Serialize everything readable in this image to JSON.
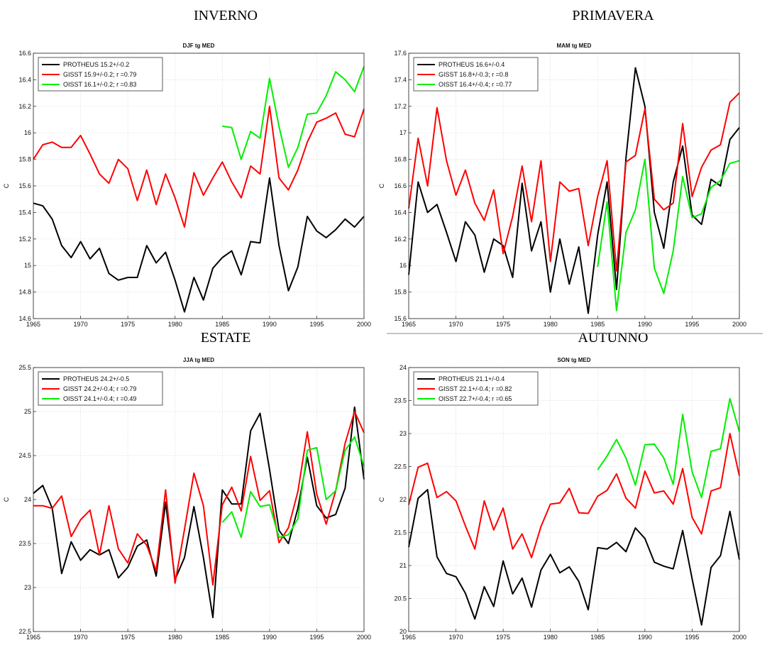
{
  "season_labels": [
    "INVERNO",
    "PRIMAVERA",
    "ESTATE",
    "AUTUNNO"
  ],
  "colors": {
    "PROTHEUS": "#000000",
    "GISST": "#ff0000",
    "OISST": "#00ee00"
  },
  "chart_data": [
    {
      "type": "line",
      "title": "DJF tg MED",
      "ylabel": "C",
      "xlim": [
        1965,
        2000
      ],
      "ylim": [
        14.6,
        16.6
      ],
      "xticks": [
        "1965",
        "1970",
        "1975",
        "1980",
        "1985",
        "1990",
        "1995",
        "2000"
      ],
      "yticks": [
        "14.6",
        "14.8",
        "15",
        "15.2",
        "15.4",
        "15.6",
        "15.8",
        "16",
        "16.2",
        "16.4",
        "16.6"
      ],
      "grid": true,
      "legend": "top-left",
      "series": [
        {
          "name": "PROTHEUS 15.2+/-0.2",
          "color": "#000000",
          "x": [
            1965,
            1966,
            1967,
            1968,
            1969,
            1970,
            1971,
            1972,
            1973,
            1974,
            1975,
            1976,
            1977,
            1978,
            1979,
            1980,
            1981,
            1982,
            1983,
            1984,
            1985,
            1986,
            1987,
            1988,
            1989,
            1990,
            1991,
            1992,
            1993,
            1994,
            1995,
            1996,
            1997,
            1998,
            1999,
            2000
          ],
          "values": [
            15.47,
            15.45,
            15.35,
            15.15,
            15.06,
            15.18,
            15.05,
            15.13,
            14.94,
            14.89,
            14.91,
            14.91,
            15.15,
            15.02,
            15.1,
            14.89,
            14.65,
            14.91,
            14.74,
            14.98,
            15.06,
            15.11,
            14.93,
            15.18,
            15.17,
            15.66,
            15.15,
            14.81,
            14.99,
            15.37,
            15.26,
            15.21,
            15.27,
            15.35,
            15.29,
            15.37
          ]
        },
        {
          "name": "GISST 15.9+/-0.2; r =0.79",
          "color": "#ff0000",
          "x": [
            1965,
            1966,
            1967,
            1968,
            1969,
            1970,
            1971,
            1972,
            1973,
            1974,
            1975,
            1976,
            1977,
            1978,
            1979,
            1980,
            1981,
            1982,
            1983,
            1984,
            1985,
            1986,
            1987,
            1988,
            1989,
            1990,
            1991,
            1992,
            1993,
            1994,
            1995,
            1996,
            1997,
            1998,
            1999,
            2000
          ],
          "values": [
            15.8,
            15.91,
            15.93,
            15.89,
            15.89,
            15.98,
            15.84,
            15.69,
            15.62,
            15.8,
            15.73,
            15.49,
            15.72,
            15.46,
            15.69,
            15.51,
            15.29,
            15.7,
            15.53,
            15.66,
            15.78,
            15.63,
            15.51,
            15.75,
            15.69,
            16.2,
            15.66,
            15.57,
            15.72,
            15.93,
            16.08,
            16.11,
            16.15,
            15.99,
            15.97,
            16.18
          ]
        },
        {
          "name": "OISST 16.1+/-0.2; r =0.83",
          "color": "#00ee00",
          "x": [
            1985,
            1986,
            1987,
            1988,
            1989,
            1990,
            1991,
            1992,
            1993,
            1994,
            1995,
            1996,
            1997,
            1998,
            1999,
            2000
          ],
          "values": [
            16.05,
            16.04,
            15.8,
            16.01,
            15.96,
            16.41,
            16.05,
            15.74,
            15.89,
            16.14,
            16.15,
            16.28,
            16.46,
            16.4,
            16.31,
            16.5
          ]
        }
      ]
    },
    {
      "type": "line",
      "title": "MAM tg MED",
      "ylabel": "C",
      "xlim": [
        1965,
        2000
      ],
      "ylim": [
        15.6,
        17.6
      ],
      "xticks": [
        "1965",
        "1970",
        "1975",
        "1980",
        "1985",
        "1990",
        "1995",
        "2000"
      ],
      "yticks": [
        "15.6",
        "15.8",
        "16",
        "16.2",
        "16.4",
        "16.6",
        "16.8",
        "17",
        "17.2",
        "17.4",
        "17.6"
      ],
      "grid": true,
      "legend": "top-left",
      "series": [
        {
          "name": "PROTHEUS 16.6+/-0.4",
          "color": "#000000",
          "x": [
            1965,
            1966,
            1967,
            1968,
            1969,
            1970,
            1971,
            1972,
            1973,
            1974,
            1975,
            1976,
            1977,
            1978,
            1979,
            1980,
            1981,
            1982,
            1983,
            1984,
            1985,
            1986,
            1987,
            1988,
            1989,
            1990,
            1991,
            1992,
            1993,
            1994,
            1995,
            1996,
            1997,
            1998,
            1999,
            2000
          ],
          "values": [
            15.93,
            16.63,
            16.4,
            16.46,
            16.25,
            16.03,
            16.33,
            16.23,
            15.95,
            16.2,
            16.15,
            15.91,
            16.62,
            16.11,
            16.33,
            15.8,
            16.2,
            15.86,
            16.14,
            15.64,
            16.23,
            16.63,
            15.82,
            16.81,
            17.49,
            17.2,
            16.4,
            16.13,
            16.63,
            16.9,
            16.38,
            16.31,
            16.65,
            16.6,
            16.95,
            17.04
          ]
        },
        {
          "name": "GISST 16.8+/-0.3; r =0.8",
          "color": "#ff0000",
          "x": [
            1965,
            1966,
            1967,
            1968,
            1969,
            1970,
            1971,
            1972,
            1973,
            1974,
            1975,
            1976,
            1977,
            1978,
            1979,
            1980,
            1981,
            1982,
            1983,
            1984,
            1985,
            1986,
            1987,
            1988,
            1989,
            1990,
            1991,
            1992,
            1993,
            1994,
            1995,
            1996,
            1997,
            1998,
            1999,
            2000
          ],
          "values": [
            16.43,
            16.96,
            16.6,
            17.19,
            16.79,
            16.53,
            16.72,
            16.47,
            16.34,
            16.57,
            16.09,
            16.37,
            16.75,
            16.33,
            16.79,
            16.03,
            16.63,
            16.56,
            16.58,
            16.15,
            16.52,
            16.79,
            15.96,
            16.78,
            16.83,
            17.18,
            16.5,
            16.42,
            16.47,
            17.07,
            16.52,
            16.74,
            16.87,
            16.91,
            17.23,
            17.3
          ]
        },
        {
          "name": "OISST 16.4+/-0.4; r =0.77",
          "color": "#00ee00",
          "x": [
            1985,
            1986,
            1987,
            1988,
            1989,
            1990,
            1991,
            1992,
            1993,
            1994,
            1995,
            1996,
            1997,
            1998,
            1999,
            2000
          ],
          "values": [
            15.99,
            16.48,
            15.66,
            16.25,
            16.42,
            16.8,
            15.98,
            15.79,
            16.11,
            16.67,
            16.36,
            16.39,
            16.59,
            16.64,
            16.77,
            16.79
          ]
        }
      ]
    },
    {
      "type": "line",
      "title": "JJA tg MED",
      "ylabel": "C",
      "xlim": [
        1965,
        2000
      ],
      "ylim": [
        22.5,
        25.5
      ],
      "xticks": [
        "1965",
        "1970",
        "1975",
        "1980",
        "1985",
        "1990",
        "1995",
        "2000"
      ],
      "yticks": [
        "22.5",
        "23",
        "23.5",
        "24",
        "24.5",
        "25",
        "25.5"
      ],
      "grid": true,
      "legend": "top-left",
      "series": [
        {
          "name": "PROTHEUS 24.2+/-0.5",
          "color": "#000000",
          "x": [
            1965,
            1966,
            1967,
            1968,
            1969,
            1970,
            1971,
            1972,
            1973,
            1974,
            1975,
            1976,
            1977,
            1978,
            1979,
            1980,
            1981,
            1982,
            1983,
            1984,
            1985,
            1986,
            1987,
            1988,
            1989,
            1990,
            1991,
            1992,
            1993,
            1994,
            1995,
            1996,
            1997,
            1998,
            1999,
            2000
          ],
          "values": [
            24.07,
            24.16,
            23.9,
            23.16,
            23.52,
            23.31,
            23.43,
            23.37,
            23.43,
            23.11,
            23.23,
            23.47,
            23.54,
            23.13,
            23.97,
            23.09,
            23.34,
            23.92,
            23.34,
            22.66,
            24.11,
            23.95,
            23.95,
            24.78,
            24.98,
            24.34,
            23.65,
            23.5,
            23.9,
            24.48,
            23.93,
            23.79,
            23.83,
            24.13,
            25.05,
            24.23
          ]
        },
        {
          "name": "GISST 24.2+/-0.4; r =0.79",
          "color": "#ff0000",
          "x": [
            1965,
            1966,
            1967,
            1968,
            1969,
            1970,
            1971,
            1972,
            1973,
            1974,
            1975,
            1976,
            1977,
            1978,
            1979,
            1980,
            1981,
            1982,
            1983,
            1984,
            1985,
            1986,
            1987,
            1988,
            1989,
            1990,
            1991,
            1992,
            1993,
            1994,
            1995,
            1996,
            1997,
            1998,
            1999,
            2000
          ],
          "values": [
            23.93,
            23.93,
            23.9,
            24.04,
            23.58,
            23.77,
            23.88,
            23.37,
            23.93,
            23.44,
            23.28,
            23.61,
            23.48,
            23.19,
            24.11,
            23.05,
            23.66,
            24.3,
            23.93,
            23.03,
            23.94,
            24.14,
            23.87,
            24.49,
            23.99,
            24.1,
            23.51,
            23.68,
            24.09,
            24.77,
            24.06,
            23.72,
            24.1,
            24.64,
            25.0,
            24.76
          ]
        },
        {
          "name": "OISST 24.1+/-0.4; r =0.49",
          "color": "#00ee00",
          "x": [
            1985,
            1986,
            1987,
            1988,
            1989,
            1990,
            1991,
            1992,
            1993,
            1994,
            1995,
            1996,
            1997,
            1998,
            1999,
            2000
          ],
          "values": [
            23.74,
            23.86,
            23.57,
            24.09,
            23.92,
            23.94,
            23.57,
            23.6,
            23.78,
            24.56,
            24.59,
            24.0,
            24.1,
            24.56,
            24.71,
            24.38
          ]
        }
      ]
    },
    {
      "type": "line",
      "title": "SON tg MED",
      "ylabel": "C",
      "xlim": [
        1965,
        2000
      ],
      "ylim": [
        20,
        24
      ],
      "xticks": [
        "1965",
        "1970",
        "1975",
        "1980",
        "1985",
        "1990",
        "1995",
        "2000"
      ],
      "yticks": [
        "20",
        "20.5",
        "21",
        "21.5",
        "22",
        "22.5",
        "23",
        "23.5",
        "24"
      ],
      "grid": true,
      "legend": "top-left",
      "series": [
        {
          "name": "PROTHEUS 21.1+/-0.4",
          "color": "#000000",
          "x": [
            1965,
            1966,
            1967,
            1968,
            1969,
            1970,
            1971,
            1972,
            1973,
            1974,
            1975,
            1976,
            1977,
            1978,
            1979,
            1980,
            1981,
            1982,
            1983,
            1984,
            1985,
            1986,
            1987,
            1988,
            1989,
            1990,
            1991,
            1992,
            1993,
            1994,
            1995,
            1996,
            1997,
            1998,
            1999,
            2000
          ],
          "values": [
            21.28,
            22.02,
            22.15,
            21.13,
            20.88,
            20.83,
            20.58,
            20.19,
            20.68,
            20.38,
            21.07,
            20.57,
            20.81,
            20.37,
            20.93,
            21.17,
            20.89,
            20.98,
            20.76,
            20.33,
            21.27,
            21.25,
            21.35,
            21.21,
            21.57,
            21.41,
            21.05,
            20.99,
            20.95,
            21.53,
            20.8,
            20.1,
            20.97,
            21.15,
            21.82,
            21.09
          ]
        },
        {
          "name": "GISST 22.1+/-0.4; r =0.82",
          "color": "#ff0000",
          "x": [
            1965,
            1966,
            1967,
            1968,
            1969,
            1970,
            1971,
            1972,
            1973,
            1974,
            1975,
            1976,
            1977,
            1978,
            1979,
            1980,
            1981,
            1982,
            1983,
            1984,
            1985,
            1986,
            1987,
            1988,
            1989,
            1990,
            1991,
            1992,
            1993,
            1994,
            1995,
            1996,
            1997,
            1998,
            1999,
            2000
          ],
          "values": [
            21.92,
            22.49,
            22.55,
            22.03,
            22.12,
            21.98,
            21.6,
            21.25,
            21.98,
            21.54,
            21.87,
            21.25,
            21.48,
            21.12,
            21.59,
            21.93,
            21.95,
            22.17,
            21.8,
            21.79,
            22.05,
            22.14,
            22.39,
            22.02,
            21.87,
            22.43,
            22.1,
            22.13,
            21.93,
            22.47,
            21.73,
            21.48,
            22.13,
            22.18,
            23.0,
            22.36
          ]
        },
        {
          "name": "OISST 22.7+/-0.4; r =0.65",
          "color": "#00ee00",
          "x": [
            1985,
            1986,
            1987,
            1988,
            1989,
            1990,
            1991,
            1992,
            1993,
            1994,
            1995,
            1996,
            1997,
            1998,
            1999,
            2000
          ],
          "values": [
            22.45,
            22.66,
            22.91,
            22.63,
            22.22,
            22.83,
            22.84,
            22.63,
            22.23,
            23.29,
            22.42,
            22.03,
            22.73,
            22.77,
            23.53,
            23.03
          ]
        }
      ]
    }
  ]
}
